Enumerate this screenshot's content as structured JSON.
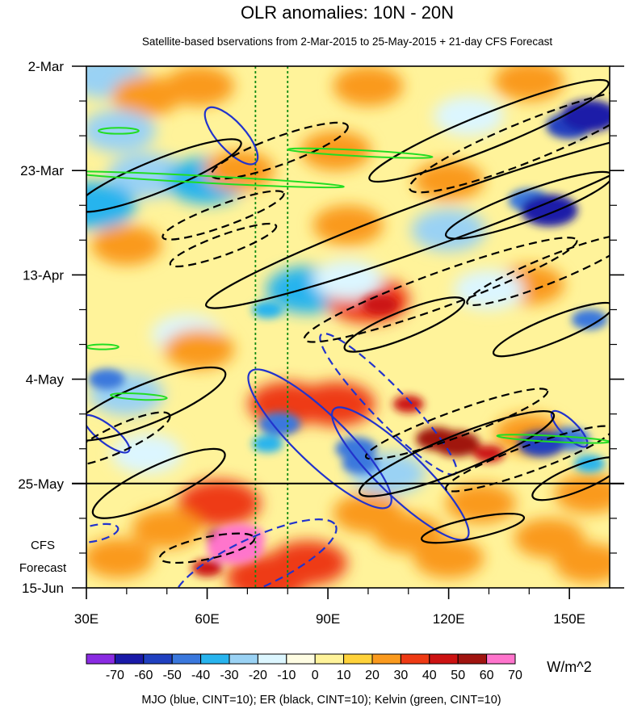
{
  "chart_data": {
    "type": "heatmap",
    "title": "OLR anomalies: 10N - 20N",
    "subtitle": "Satellite-based bservations from 2-Mar-2015 to 25-May-2015 + 21-day CFS Forecast",
    "x_axis": {
      "range": [
        30,
        160
      ],
      "tick_values": [
        30,
        60,
        90,
        120,
        150
      ],
      "tick_labels": [
        "30E",
        "60E",
        "90E",
        "120E",
        "150E"
      ]
    },
    "y_axis": {
      "range_days": [
        0,
        105
      ],
      "tick_days": [
        0,
        21,
        42,
        63,
        84,
        105
      ],
      "tick_labels": [
        "2-Mar",
        "23-Mar",
        "13-Apr",
        "4-May",
        "25-May",
        "15-Jun"
      ],
      "reversed": true
    },
    "observation_end_day": 84,
    "forecast_label": [
      "CFS",
      "Forecast"
    ],
    "reference_lines_lon": [
      72,
      80
    ],
    "colorbar": {
      "levels": [
        -70,
        -60,
        -50,
        -40,
        -30,
        -20,
        -10,
        0,
        10,
        20,
        30,
        40,
        50,
        60,
        70
      ],
      "colors": [
        "#8a2be2",
        "#1a1aa8",
        "#2040c0",
        "#3a78dd",
        "#28b4ee",
        "#9ad2f4",
        "#dcf6ff",
        "#fffde3",
        "#fff39a",
        "#ffd23a",
        "#fa9a1e",
        "#ee3a14",
        "#cc1212",
        "#a01410",
        "#ff74cc"
      ],
      "units": "W/m^2"
    },
    "footer": "MJO (blue, CINT=10); ER (black, CINT=10); Kelvin (green, CINT=10)",
    "anomaly_features": [
      {
        "lon": 35,
        "day": 2,
        "value": -30
      },
      {
        "lon": 45,
        "day": 6,
        "value": 20
      },
      {
        "lon": 58,
        "day": 4,
        "value": 20
      },
      {
        "lon": 100,
        "day": 4,
        "value": 20
      },
      {
        "lon": 140,
        "day": 3,
        "value": 20
      },
      {
        "lon": 38,
        "day": 13,
        "value": -25
      },
      {
        "lon": 125,
        "day": 10,
        "value": -20
      },
      {
        "lon": 150,
        "day": 12,
        "value": -55
      },
      {
        "lon": 155,
        "day": 10,
        "value": -65
      },
      {
        "lon": 45,
        "day": 22,
        "value": -30
      },
      {
        "lon": 60,
        "day": 23,
        "value": -35
      },
      {
        "lon": 32,
        "day": 28,
        "value": -35
      },
      {
        "lon": 68,
        "day": 21,
        "value": 20
      },
      {
        "lon": 92,
        "day": 17,
        "value": 20
      },
      {
        "lon": 120,
        "day": 23,
        "value": 20
      },
      {
        "lon": 140,
        "day": 27,
        "value": -50
      },
      {
        "lon": 145,
        "day": 29,
        "value": -65
      },
      {
        "lon": 120,
        "day": 33,
        "value": -25
      },
      {
        "lon": 95,
        "day": 32,
        "value": 20
      },
      {
        "lon": 40,
        "day": 36,
        "value": 20
      },
      {
        "lon": 85,
        "day": 45,
        "value": -35
      },
      {
        "lon": 75,
        "day": 49,
        "value": -40
      },
      {
        "lon": 100,
        "day": 47,
        "value": 35
      },
      {
        "lon": 103,
        "day": 48,
        "value": 45
      },
      {
        "lon": 95,
        "day": 43,
        "value": -20
      },
      {
        "lon": 140,
        "day": 44,
        "value": 20
      },
      {
        "lon": 155,
        "day": 51,
        "value": -45
      },
      {
        "lon": 130,
        "day": 45,
        "value": -20
      },
      {
        "lon": 55,
        "day": 54,
        "value": -20
      },
      {
        "lon": 35,
        "day": 63,
        "value": -45
      },
      {
        "lon": 40,
        "day": 66,
        "value": -25
      },
      {
        "lon": 45,
        "day": 78,
        "value": -20
      },
      {
        "lon": 58,
        "day": 57,
        "value": 20
      },
      {
        "lon": 80,
        "day": 68,
        "value": 30
      },
      {
        "lon": 92,
        "day": 68,
        "value": 30
      },
      {
        "lon": 110,
        "day": 68,
        "value": 40
      },
      {
        "lon": 117,
        "day": 75,
        "value": 50
      },
      {
        "lon": 122,
        "day": 76,
        "value": 55
      },
      {
        "lon": 130,
        "day": 78,
        "value": 40
      },
      {
        "lon": 140,
        "day": 74,
        "value": 20
      },
      {
        "lon": 75,
        "day": 76,
        "value": -40
      },
      {
        "lon": 78,
        "day": 72,
        "value": -50
      },
      {
        "lon": 97,
        "day": 77,
        "value": -50
      },
      {
        "lon": 98,
        "day": 80,
        "value": -45
      },
      {
        "lon": 105,
        "day": 82,
        "value": -25
      },
      {
        "lon": 150,
        "day": 75,
        "value": -50
      },
      {
        "lon": 143,
        "day": 76,
        "value": -55
      },
      {
        "lon": 155,
        "day": 80,
        "value": -40
      },
      {
        "lon": 155,
        "day": 86,
        "value": 20
      },
      {
        "lon": 63,
        "day": 88,
        "value": 35
      },
      {
        "lon": 65,
        "day": 95,
        "value": 50
      },
      {
        "lon": 68,
        "day": 95,
        "value": 60
      },
      {
        "lon": 67,
        "day": 97,
        "value": 65
      },
      {
        "lon": 60,
        "day": 101,
        "value": 40
      },
      {
        "lon": 75,
        "day": 103,
        "value": 35
      },
      {
        "lon": 85,
        "day": 100,
        "value": 30
      },
      {
        "lon": 50,
        "day": 93,
        "value": 20
      },
      {
        "lon": 100,
        "day": 90,
        "value": 20
      },
      {
        "lon": 110,
        "day": 94,
        "value": 20
      },
      {
        "lon": 128,
        "day": 88,
        "value": 20
      },
      {
        "lon": 145,
        "day": 95,
        "value": 20
      },
      {
        "lon": 155,
        "day": 100,
        "value": 20
      },
      {
        "lon": 38,
        "day": 99,
        "value": 20
      },
      {
        "lon": 120,
        "day": 99,
        "value": 20
      }
    ],
    "contour_series": [
      {
        "name": "MJO",
        "color": "#2233cc",
        "dashed": false,
        "lon": 66,
        "day": 14,
        "rx": 9,
        "ry": 2.8,
        "angle": 48
      },
      {
        "name": "MJO",
        "color": "#2233cc",
        "dashed": false,
        "lon": 88,
        "day": 75,
        "rx": 24,
        "ry": 5,
        "angle": 44
      },
      {
        "name": "MJO",
        "color": "#2233cc",
        "dashed": false,
        "lon": 108,
        "day": 82,
        "rx": 23,
        "ry": 4.5,
        "angle": 44
      },
      {
        "name": "MJO",
        "color": "#2233cc",
        "dashed": false,
        "lon": 35,
        "day": 74,
        "rx": 7,
        "ry": 1.8,
        "angle": 38
      },
      {
        "name": "MJO",
        "color": "#2233cc",
        "dashed": false,
        "lon": 150,
        "day": 73,
        "rx": 6,
        "ry": 1.6,
        "angle": 45
      },
      {
        "name": "MJO",
        "color": "#2233cc",
        "dashed": true,
        "lon": 105,
        "day": 68,
        "rx": 24,
        "ry": 3.5,
        "angle": 46
      },
      {
        "name": "MJO",
        "color": "#2233cc",
        "dashed": true,
        "lon": 72,
        "day": 100,
        "rx": 22,
        "ry": 5,
        "angle": -25
      },
      {
        "name": "MJO",
        "color": "#2233cc",
        "dashed": true,
        "lon": 32,
        "day": 94,
        "rx": 6,
        "ry": 1.6,
        "angle": -12
      },
      {
        "name": "ER",
        "color": "#000000",
        "dashed": false,
        "lon": 48,
        "day": 22,
        "rx": 22,
        "ry": 3.2,
        "angle": -22
      },
      {
        "name": "ER",
        "color": "#000000",
        "dashed": false,
        "lon": 118,
        "day": 31,
        "rx": 62,
        "ry": 4.5,
        "angle": -20
      },
      {
        "name": "ER",
        "color": "#000000",
        "dashed": false,
        "lon": 130,
        "day": 13,
        "rx": 32,
        "ry": 3.5,
        "angle": -22
      },
      {
        "name": "ER",
        "color": "#000000",
        "dashed": false,
        "lon": 140,
        "day": 28,
        "rx": 22,
        "ry": 3,
        "angle": -20
      },
      {
        "name": "ER",
        "color": "#000000",
        "dashed": false,
        "lon": 109,
        "day": 52,
        "rx": 16,
        "ry": 2.7,
        "angle": -22
      },
      {
        "name": "ER",
        "color": "#000000",
        "dashed": false,
        "lon": 146,
        "day": 53,
        "rx": 16,
        "ry": 2.5,
        "angle": -22
      },
      {
        "name": "ER",
        "color": "#000000",
        "dashed": false,
        "lon": 45,
        "day": 68,
        "rx": 21,
        "ry": 4,
        "angle": -22
      },
      {
        "name": "ER",
        "color": "#000000",
        "dashed": false,
        "lon": 48,
        "day": 84,
        "rx": 18,
        "ry": 3.6,
        "angle": -25
      },
      {
        "name": "ER",
        "color": "#000000",
        "dashed": false,
        "lon": 122,
        "day": 78,
        "rx": 26,
        "ry": 3.6,
        "angle": -22
      },
      {
        "name": "ER",
        "color": "#000000",
        "dashed": false,
        "lon": 126,
        "day": 93,
        "rx": 13,
        "ry": 2,
        "angle": -12
      },
      {
        "name": "ER",
        "color": "#000000",
        "dashed": false,
        "lon": 152,
        "day": 83,
        "rx": 12,
        "ry": 2.5,
        "angle": -22
      },
      {
        "name": "ER",
        "color": "#000000",
        "dashed": true,
        "lon": 140,
        "day": 15,
        "rx": 32,
        "ry": 4,
        "angle": -22
      },
      {
        "name": "ER",
        "color": "#000000",
        "dashed": true,
        "lon": 78,
        "day": 17,
        "rx": 18,
        "ry": 2.8,
        "angle": -20
      },
      {
        "name": "ER",
        "color": "#000000",
        "dashed": true,
        "lon": 64,
        "day": 36,
        "rx": 14,
        "ry": 2,
        "angle": -20
      },
      {
        "name": "ER",
        "color": "#000000",
        "dashed": true,
        "lon": 118,
        "day": 45,
        "rx": 36,
        "ry": 3.5,
        "angle": -20
      },
      {
        "name": "ER",
        "color": "#000000",
        "dashed": true,
        "lon": 145,
        "day": 41,
        "rx": 22,
        "ry": 2.6,
        "angle": -22
      },
      {
        "name": "ER",
        "color": "#000000",
        "dashed": true,
        "lon": 38,
        "day": 75,
        "rx": 14,
        "ry": 2.6,
        "angle": -25
      },
      {
        "name": "ER",
        "color": "#000000",
        "dashed": true,
        "lon": 122,
        "day": 72,
        "rx": 24,
        "ry": 2.6,
        "angle": -20
      },
      {
        "name": "ER",
        "color": "#000000",
        "dashed": true,
        "lon": 140,
        "day": 79,
        "rx": 22,
        "ry": 2.6,
        "angle": -20
      },
      {
        "name": "ER",
        "color": "#000000",
        "dashed": true,
        "lon": 60,
        "day": 97,
        "rx": 12,
        "ry": 2.2,
        "angle": -12
      },
      {
        "name": "ER",
        "color": "#000000",
        "dashed": true,
        "lon": 64,
        "day": 30,
        "rx": 16,
        "ry": 2.2,
        "angle": -20
      },
      {
        "name": "Kelvin",
        "color": "#22dd22",
        "dashed": false,
        "lon": 60,
        "day": 22.8,
        "rx": 34,
        "ry": 0.7,
        "angle": 3
      },
      {
        "name": "Kelvin",
        "color": "#22dd22",
        "dashed": false,
        "lon": 98,
        "day": 17.5,
        "rx": 18,
        "ry": 0.6,
        "angle": 3
      },
      {
        "name": "Kelvin",
        "color": "#22dd22",
        "dashed": false,
        "lon": 38,
        "day": 13,
        "rx": 5,
        "ry": 0.6,
        "angle": 0
      },
      {
        "name": "Kelvin",
        "color": "#22dd22",
        "dashed": false,
        "lon": 43,
        "day": 66.5,
        "rx": 7,
        "ry": 0.6,
        "angle": 3
      },
      {
        "name": "Kelvin",
        "color": "#22dd22",
        "dashed": false,
        "lon": 146,
        "day": 75,
        "rx": 14,
        "ry": 0.6,
        "angle": 3
      },
      {
        "name": "Kelvin",
        "color": "#22dd22",
        "dashed": false,
        "lon": 34,
        "day": 56.5,
        "rx": 4,
        "ry": 0.5,
        "angle": 0
      }
    ]
  }
}
